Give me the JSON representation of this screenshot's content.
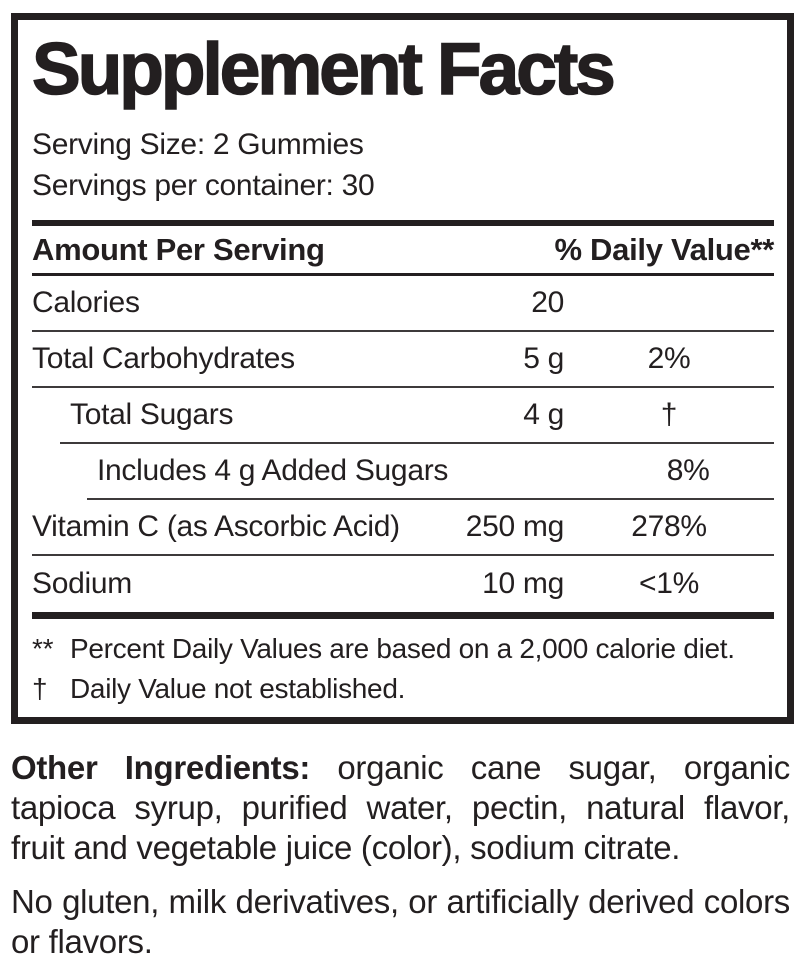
{
  "panel": {
    "title": "Supplement Facts",
    "serving_size": "Serving Size: 2 Gummies",
    "servings_per_container": "Servings per container: 30",
    "columns": {
      "amount_header": "Amount Per Serving",
      "dv_header": "% Daily Value**"
    },
    "rows": [
      {
        "label": "Calories",
        "amount": "20",
        "dv": "",
        "indent": 0
      },
      {
        "label": "Total Carbohydrates",
        "amount": "5 g",
        "dv": "2%",
        "indent": 0
      },
      {
        "label": "Total Sugars",
        "amount": "4 g",
        "dv": "†",
        "indent": 1
      },
      {
        "label": "Includes 4 g Added Sugars",
        "amount": "",
        "dv": "8%",
        "indent": 2
      },
      {
        "label": "Vitamin C (as Ascorbic Acid)",
        "amount": "250 mg",
        "dv": "278%",
        "indent": 0
      },
      {
        "label": "Sodium",
        "amount": "10 mg",
        "dv": "<1%",
        "indent": 0
      }
    ],
    "footnotes": [
      {
        "marker": "**",
        "text": "Percent Daily Values are based on a 2,000 calorie diet."
      },
      {
        "marker": "†",
        "text": "Daily Value not established."
      }
    ]
  },
  "other_ingredients": {
    "label": "Other Ingredients:",
    "text": " organic cane sugar, organic tapioca syrup, purified water, pectin, natural flavor, fruit and vegetable juice (color), sodium citrate."
  },
  "allergen_statement": "No gluten, milk derivatives, or artificially derived colors or flavors.",
  "colors": {
    "text": "#231f20",
    "background": "#ffffff"
  }
}
